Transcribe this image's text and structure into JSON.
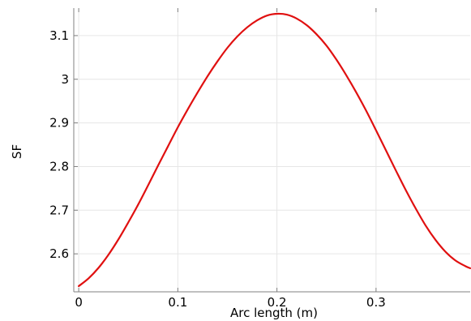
{
  "chart_data": {
    "type": "line",
    "title": "",
    "xlabel": "Arc length (m)",
    "ylabel": "SF",
    "xlim": [
      -0.005,
      0.395
    ],
    "ylim": [
      2.513,
      3.163
    ],
    "xticks": [
      0,
      0.1,
      0.2,
      0.3
    ],
    "xtick_labels": [
      "0",
      "0.1",
      "0.2",
      "0.3"
    ],
    "yticks": [
      2.6,
      2.7,
      2.8,
      2.9,
      3.0,
      3.1
    ],
    "ytick_labels": [
      "2.6",
      "2.7",
      "2.8",
      "2.9",
      "3",
      "3.1"
    ],
    "grid": true,
    "legend": "none",
    "series": [
      {
        "color": "#e01010",
        "x": [
          0,
          0.01,
          0.02,
          0.03,
          0.04,
          0.05,
          0.06,
          0.07,
          0.08,
          0.09,
          0.1,
          0.11,
          0.12,
          0.13,
          0.14,
          0.15,
          0.16,
          0.17,
          0.18,
          0.19,
          0.2,
          0.21,
          0.22,
          0.23,
          0.24,
          0.25,
          0.26,
          0.27,
          0.28,
          0.29,
          0.3,
          0.31,
          0.32,
          0.33,
          0.34,
          0.35,
          0.36,
          0.37,
          0.38,
          0.39,
          0.395
        ],
        "y": [
          2.526,
          2.544,
          2.568,
          2.598,
          2.633,
          2.672,
          2.713,
          2.757,
          2.802,
          2.846,
          2.89,
          2.931,
          2.97,
          3.007,
          3.041,
          3.072,
          3.098,
          3.119,
          3.135,
          3.146,
          3.15,
          3.148,
          3.139,
          3.124,
          3.103,
          3.077,
          3.045,
          3.009,
          2.97,
          2.928,
          2.883,
          2.837,
          2.791,
          2.746,
          2.704,
          2.665,
          2.632,
          2.605,
          2.585,
          2.572,
          2.567
        ]
      }
    ]
  }
}
